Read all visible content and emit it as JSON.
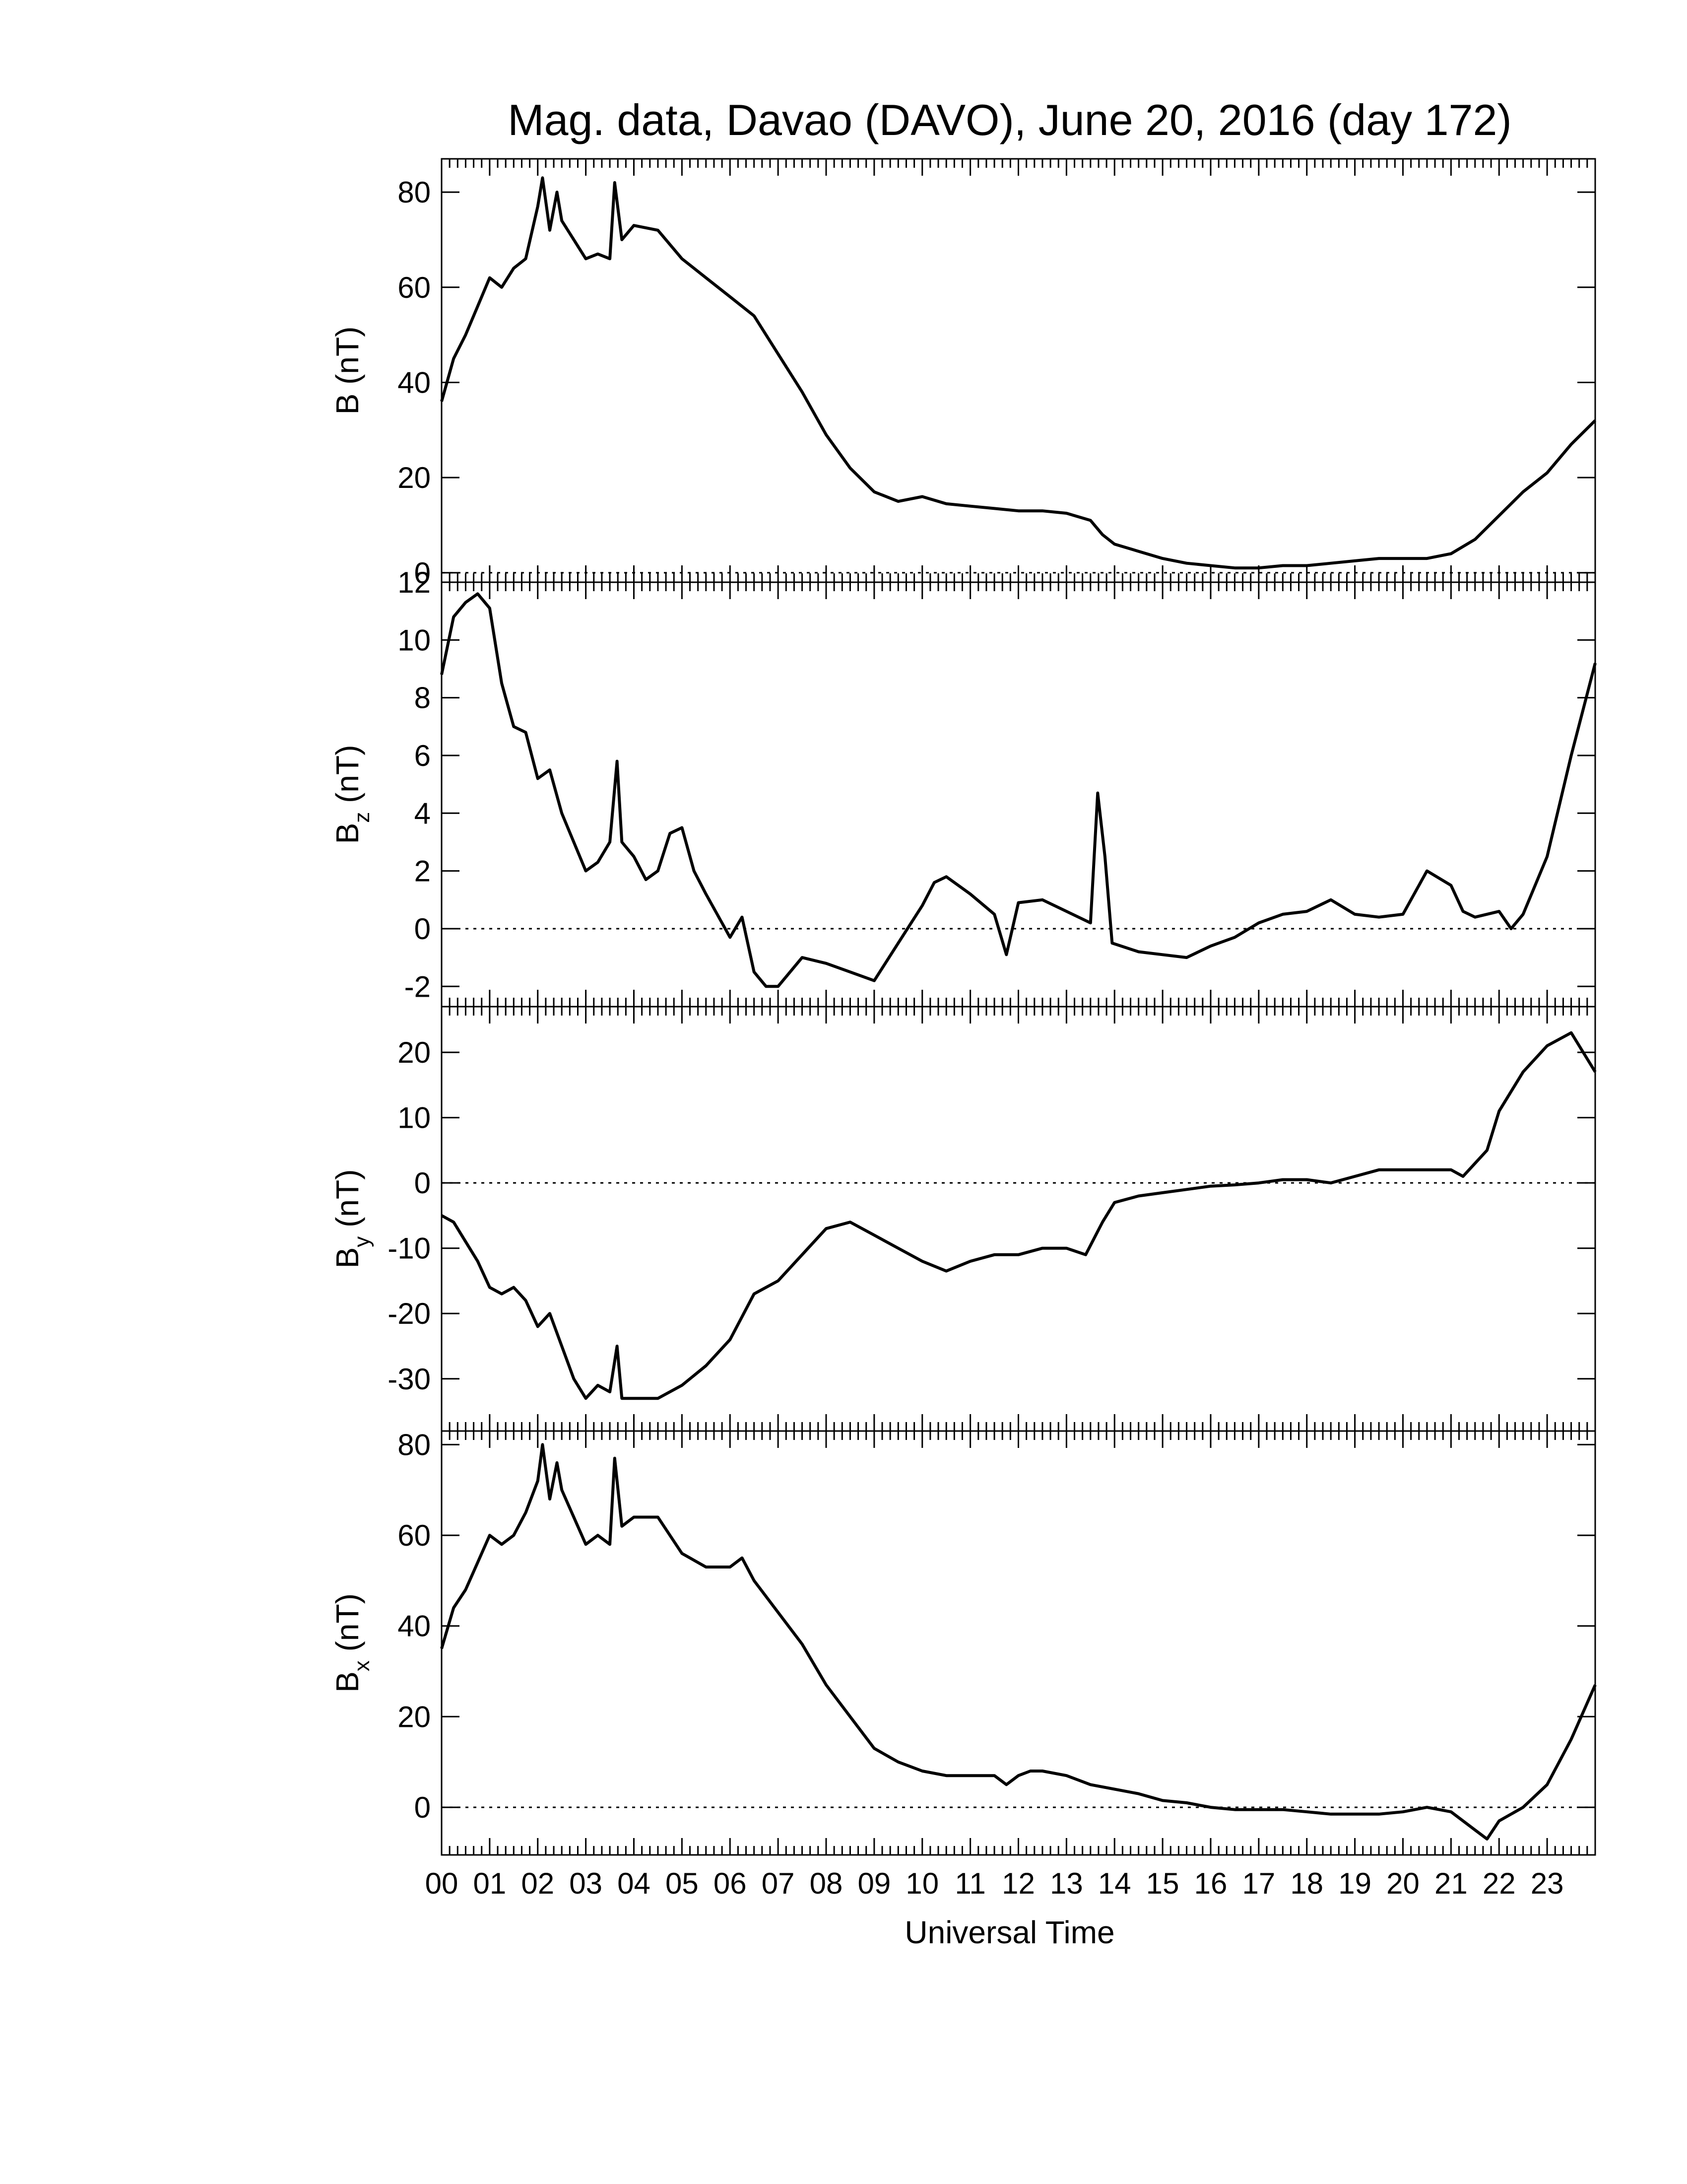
{
  "chart_data": {
    "type": "line",
    "title": "Mag. data, Davao (DAVO), June 20, 2016 (day 172)",
    "xlabel": "Universal Time",
    "x_tick_labels": [
      "00",
      "01",
      "02",
      "03",
      "04",
      "05",
      "06",
      "07",
      "08",
      "09",
      "10",
      "11",
      "12",
      "13",
      "14",
      "15",
      "16",
      "17",
      "18",
      "19",
      "20",
      "21",
      "22",
      "23"
    ],
    "xlim": [
      0,
      24
    ],
    "line_color": "#000000",
    "zero_line": "dotted",
    "panels": [
      {
        "ylabel_main": "B",
        "ylabel_sub": "",
        "ylabel_unit": "(nT)",
        "ylim": [
          -2,
          87
        ],
        "yticks": [
          0,
          20,
          40,
          60,
          80
        ],
        "ytick_labels": [
          "0",
          "20",
          "40",
          "60",
          "80"
        ],
        "series": [
          {
            "x": [
              0,
              0.25,
              0.5,
              0.75,
              1,
              1.25,
              1.5,
              1.75,
              2,
              2.1,
              2.25,
              2.4,
              2.5,
              2.75,
              3,
              3.25,
              3.5,
              3.6,
              3.75,
              4,
              4.5,
              5,
              5.5,
              6,
              6.25,
              6.5,
              7,
              7.5,
              8,
              8.5,
              9,
              9.5,
              10,
              10.5,
              11,
              11.5,
              12,
              12.5,
              13,
              13.5,
              13.75,
              14,
              14.5,
              15,
              15.5,
              16,
              16.5,
              17,
              17.5,
              18,
              18.5,
              19,
              19.5,
              20,
              20.5,
              21,
              21.5,
              22,
              22.5,
              23,
              23.5,
              24
            ],
            "y": [
              36,
              45,
              50,
              56,
              62,
              60,
              64,
              66,
              77,
              83,
              72,
              80,
              74,
              70,
              66,
              67,
              66,
              82,
              70,
              73,
              72,
              66,
              62,
              58,
              56,
              54,
              46,
              38,
              29,
              22,
              17,
              15,
              16,
              14.5,
              14,
              13.5,
              13,
              13,
              12.5,
              11,
              8,
              6,
              4.5,
              3,
              2,
              1.5,
              1,
              1,
              1.5,
              1.5,
              2,
              2.5,
              3,
              3,
              3,
              4,
              7,
              12,
              17,
              21,
              27,
              32
            ]
          }
        ]
      },
      {
        "ylabel_main": "B",
        "ylabel_sub": "z",
        "ylabel_unit": "(nT)",
        "ylim": [
          -2.7,
          12
        ],
        "yticks": [
          -2,
          0,
          2,
          4,
          6,
          8,
          10,
          12
        ],
        "ytick_labels": [
          "-2",
          "0",
          "2",
          "4",
          "6",
          "8",
          "10",
          "12"
        ],
        "series": [
          {
            "x": [
              0,
              0.25,
              0.5,
              0.75,
              1,
              1.25,
              1.5,
              1.75,
              2,
              2.25,
              2.5,
              2.75,
              3,
              3.25,
              3.5,
              3.65,
              3.75,
              4,
              4.25,
              4.5,
              4.75,
              5,
              5.25,
              5.5,
              6,
              6.25,
              6.5,
              6.75,
              7,
              7.5,
              8,
              8.5,
              9,
              9.5,
              10,
              10.25,
              10.5,
              11,
              11.5,
              11.75,
              12,
              12.5,
              13,
              13.5,
              13.65,
              13.8,
              13.95,
              14.5,
              15,
              15.5,
              16,
              16.5,
              17,
              17.5,
              18,
              18.5,
              19,
              19.5,
              20,
              20.5,
              21,
              21.25,
              21.5,
              22,
              22.25,
              22.5,
              23,
              23.5,
              24
            ],
            "y": [
              8.8,
              10.8,
              11.3,
              11.6,
              11.1,
              8.5,
              7,
              6.8,
              5.2,
              5.5,
              4,
              3,
              2,
              2.3,
              3,
              5.8,
              3,
              2.5,
              1.7,
              2,
              3.3,
              3.5,
              2,
              1.2,
              -0.3,
              0.4,
              -1.5,
              -2,
              -2,
              -1,
              -1.2,
              -1.5,
              -1.8,
              -0.5,
              0.8,
              1.6,
              1.8,
              1.2,
              0.5,
              -0.9,
              0.9,
              1,
              0.6,
              0.2,
              4.7,
              2.5,
              -0.5,
              -0.8,
              -0.9,
              -1,
              -0.6,
              -0.3,
              0.2,
              0.5,
              0.6,
              1,
              0.5,
              0.4,
              0.5,
              2,
              1.5,
              0.6,
              0.4,
              0.6,
              0,
              0.5,
              2.5,
              6,
              9.2
            ]
          }
        ]
      },
      {
        "ylabel_main": "B",
        "ylabel_sub": "y",
        "ylabel_unit": "(nT)",
        "ylim": [
          -38,
          27
        ],
        "yticks": [
          -30,
          -20,
          -10,
          0,
          10,
          20
        ],
        "ytick_labels": [
          "-30",
          "-20",
          "-10",
          "0",
          "10",
          "20"
        ],
        "series": [
          {
            "x": [
              0,
              0.25,
              0.5,
              0.75,
              1,
              1.25,
              1.5,
              1.75,
              2,
              2.25,
              2.5,
              2.75,
              3,
              3.25,
              3.5,
              3.65,
              3.75,
              4,
              4.5,
              5,
              5.5,
              6,
              6.5,
              7,
              7.5,
              8,
              8.5,
              9,
              9.5,
              10,
              10.5,
              11,
              11.5,
              12,
              12.5,
              13,
              13.4,
              13.75,
              14,
              14.5,
              15,
              15.5,
              16,
              16.5,
              17,
              17.5,
              18,
              18.5,
              19,
              19.5,
              20,
              20.5,
              21,
              21.25,
              21.5,
              21.75,
              22,
              22.25,
              22.5,
              23,
              23.5,
              23.75,
              24
            ],
            "y": [
              -5,
              -6,
              -9,
              -12,
              -16,
              -17,
              -16,
              -18,
              -22,
              -20,
              -25,
              -30,
              -33,
              -31,
              -32,
              -25,
              -33,
              -33,
              -33,
              -31,
              -28,
              -24,
              -17,
              -15,
              -11,
              -7,
              -6,
              -8,
              -10,
              -12,
              -13.5,
              -12,
              -11,
              -11,
              -10,
              -10,
              -11,
              -6,
              -3,
              -2,
              -1.5,
              -1,
              -0.5,
              -0.3,
              0,
              0.5,
              0.5,
              0,
              1,
              2,
              2,
              2,
              2,
              1,
              3,
              5,
              11,
              14,
              17,
              21,
              23,
              20,
              17
            ]
          }
        ]
      },
      {
        "ylabel_main": "B",
        "ylabel_sub": "x",
        "ylabel_unit": "(nT)",
        "ylim": [
          -10.5,
          83
        ],
        "yticks": [
          0,
          20,
          40,
          60,
          80
        ],
        "ytick_labels": [
          "0",
          "20",
          "40",
          "60",
          "80"
        ],
        "series": [
          {
            "x": [
              0,
              0.25,
              0.5,
              0.75,
              1,
              1.25,
              1.5,
              1.75,
              2,
              2.1,
              2.25,
              2.4,
              2.5,
              2.75,
              3,
              3.25,
              3.5,
              3.6,
              3.75,
              4,
              4.5,
              5,
              5.5,
              6,
              6.25,
              6.5,
              7,
              7.5,
              8,
              8.5,
              9,
              9.5,
              10,
              10.5,
              11,
              11.5,
              11.75,
              12,
              12.25,
              12.5,
              13,
              13.5,
              14,
              14.5,
              15,
              15.5,
              16,
              16.5,
              17,
              17.5,
              18,
              18.5,
              19,
              19.5,
              20,
              20.5,
              21,
              21.5,
              21.75,
              22,
              22.5,
              23,
              23.5,
              24
            ],
            "y": [
              35,
              44,
              48,
              54,
              60,
              58,
              60,
              65,
              72,
              80,
              68,
              76,
              70,
              64,
              58,
              60,
              58,
              77,
              62,
              64,
              64,
              56,
              53,
              53,
              55,
              50,
              43,
              36,
              27,
              20,
              13,
              10,
              8,
              7,
              7,
              7,
              5,
              7,
              8,
              8,
              7,
              5,
              4,
              3,
              1.5,
              1,
              0,
              -0.5,
              -0.5,
              -0.5,
              -1,
              -1.5,
              -1.5,
              -1.5,
              -1,
              0,
              -1,
              -5,
              -7,
              -3,
              0,
              5,
              15,
              27
            ]
          }
        ]
      }
    ]
  }
}
